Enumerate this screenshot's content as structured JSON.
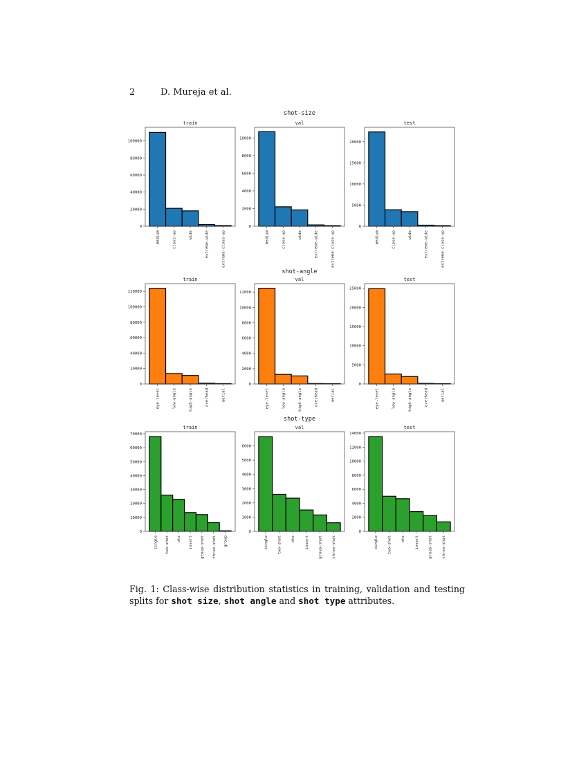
{
  "header": {
    "page_number": "2",
    "authors": "D. Mureja et al."
  },
  "caption": {
    "label": "Fig. 1:",
    "text_1": " Class-wise distribution statistics in training, validation and testing splits for ",
    "attr_1": "shot size",
    "sep_1": ", ",
    "attr_2": "shot angle",
    "sep_2": " and ",
    "attr_3": "shot type",
    "text_2": " attributes."
  },
  "colors": {
    "shot-size": "#1f77b4",
    "shot-angle": "#ff7f0e",
    "shot-type": "#2ca02c"
  },
  "chart_data": [
    {
      "type": "bar",
      "group": "shot-size",
      "title": "train",
      "categories": [
        "medium",
        "close-up",
        "wide",
        "extreme-wide",
        "extreme-close-up"
      ],
      "values": [
        110000,
        21000,
        18000,
        2000,
        800
      ],
      "ylim": [
        0,
        116000
      ],
      "yticks": [
        0,
        20000,
        40000,
        60000,
        80000,
        100000
      ]
    },
    {
      "type": "bar",
      "group": "shot-size",
      "title": "val",
      "categories": [
        "medium",
        "close-up",
        "wide",
        "extreme-wide",
        "extreme-close-up"
      ],
      "values": [
        10700,
        2200,
        1850,
        150,
        70
      ],
      "ylim": [
        0,
        11200
      ],
      "yticks": [
        0,
        2000,
        4000,
        6000,
        8000,
        10000
      ]
    },
    {
      "type": "bar",
      "group": "shot-size",
      "title": "test",
      "categories": [
        "medium",
        "close-up",
        "wide",
        "extreme-wide",
        "extreme-close-up"
      ],
      "values": [
        22300,
        3900,
        3450,
        250,
        150
      ],
      "ylim": [
        0,
        23400
      ],
      "yticks": [
        0,
        5000,
        10000,
        15000,
        20000
      ]
    },
    {
      "type": "bar",
      "group": "shot-angle",
      "title": "train",
      "categories": [
        "eye-level",
        "low-angle",
        "high-angle",
        "overhead",
        "aerial"
      ],
      "values": [
        124000,
        13500,
        11000,
        1000,
        500
      ],
      "ylim": [
        0,
        130000
      ],
      "yticks": [
        0,
        20000,
        40000,
        60000,
        80000,
        100000,
        120000
      ]
    },
    {
      "type": "bar",
      "group": "shot-angle",
      "title": "val",
      "categories": [
        "eye-level",
        "low-angle",
        "high-angle",
        "overhead",
        "aerial"
      ],
      "values": [
        12500,
        1250,
        1050,
        60,
        40
      ],
      "ylim": [
        0,
        13100
      ],
      "yticks": [
        0,
        2000,
        4000,
        6000,
        8000,
        10000,
        12000
      ]
    },
    {
      "type": "bar",
      "group": "shot-angle",
      "title": "test",
      "categories": [
        "eye-level",
        "low-angle",
        "high-angle",
        "overhead",
        "aerial"
      ],
      "values": [
        24900,
        2600,
        1950,
        150,
        80
      ],
      "ylim": [
        0,
        26200
      ],
      "yticks": [
        0,
        5000,
        10000,
        15000,
        20000,
        25000
      ]
    },
    {
      "type": "bar",
      "group": "shot-type",
      "title": "train",
      "categories": [
        "single",
        "two-shot",
        "ots",
        "insert",
        "group-shot",
        "three-shot",
        "group"
      ],
      "values": [
        68000,
        26000,
        23000,
        13500,
        12000,
        6200,
        400
      ],
      "ylim": [
        0,
        71500
      ],
      "yticks": [
        0,
        10000,
        20000,
        30000,
        40000,
        50000,
        60000,
        70000
      ]
    },
    {
      "type": "bar",
      "group": "shot-type",
      "title": "val",
      "categories": [
        "single",
        "two-shot",
        "ots",
        "insert",
        "group-shot",
        "three-shot"
      ],
      "values": [
        6650,
        2600,
        2330,
        1500,
        1150,
        600
      ],
      "ylim": [
        0,
        7000
      ],
      "yticks": [
        0,
        1000,
        2000,
        3000,
        4000,
        5000,
        6000
      ]
    },
    {
      "type": "bar",
      "group": "shot-type",
      "title": "test",
      "categories": [
        "single",
        "two-shot",
        "ots",
        "insert",
        "group-shot",
        "three-shot"
      ],
      "values": [
        13500,
        5000,
        4650,
        2800,
        2250,
        1350
      ],
      "ylim": [
        0,
        14200
      ],
      "yticks": [
        0,
        2000,
        4000,
        6000,
        8000,
        10000,
        12000,
        14000
      ]
    }
  ]
}
